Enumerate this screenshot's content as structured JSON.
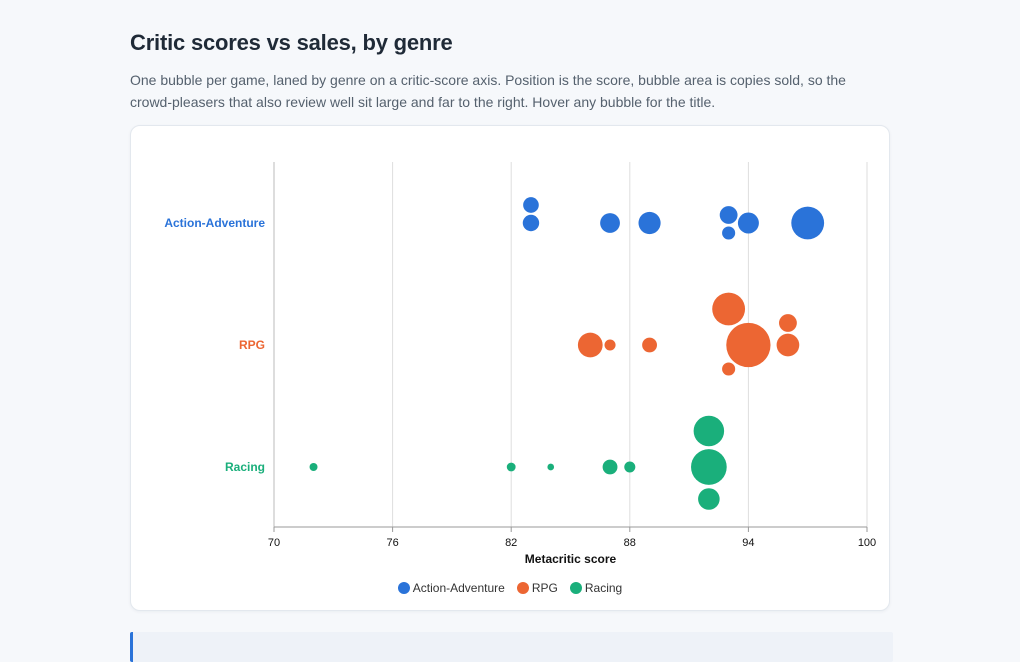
{
  "header": {
    "title": "Critic scores vs sales, by genre",
    "subtitle": "One bubble per game, laned by genre on a critic-score axis. Position is the score, bubble area is copies sold, so the crowd-pleasers that also review well sit large and far to the right. Hover any bubble for the title."
  },
  "chart_data": {
    "type": "scatter",
    "xlabel": "Metacritic score",
    "xlim": [
      70,
      100
    ],
    "xticks": [
      70,
      76,
      82,
      88,
      94,
      100
    ],
    "grid": true,
    "legend_position": "bottom",
    "lanes": [
      "Action-Adventure",
      "RPG",
      "Racing"
    ],
    "series": [
      {
        "name": "Action-Adventure",
        "color": "#2a73d9",
        "points": [
          {
            "x": 83,
            "size": 5.5
          },
          {
            "x": 83,
            "size": 5.0
          },
          {
            "x": 87,
            "size": 8.0
          },
          {
            "x": 89,
            "size": 10.0
          },
          {
            "x": 93,
            "size": 6.5
          },
          {
            "x": 93,
            "size": 3.5
          },
          {
            "x": 94,
            "size": 9.0
          },
          {
            "x": 97,
            "size": 22.0
          }
        ]
      },
      {
        "name": "RPG",
        "color": "#ec6633",
        "points": [
          {
            "x": 86,
            "size": 12.5
          },
          {
            "x": 87,
            "size": 2.5
          },
          {
            "x": 89,
            "size": 4.5
          },
          {
            "x": 93,
            "size": 22.0
          },
          {
            "x": 93,
            "size": 3.5
          },
          {
            "x": 94,
            "size": 40.0
          },
          {
            "x": 96,
            "size": 10.5
          },
          {
            "x": 96,
            "size": 6.5
          }
        ]
      },
      {
        "name": "Racing",
        "color": "#1aaf7b",
        "points": [
          {
            "x": 72,
            "size": 1.3
          },
          {
            "x": 82,
            "size": 1.6
          },
          {
            "x": 84,
            "size": 0.9
          },
          {
            "x": 87,
            "size": 4.5
          },
          {
            "x": 88,
            "size": 2.5
          },
          {
            "x": 92,
            "size": 9.5
          },
          {
            "x": 92,
            "size": 26.0
          },
          {
            "x": 92,
            "size": 19.0
          }
        ]
      }
    ]
  }
}
